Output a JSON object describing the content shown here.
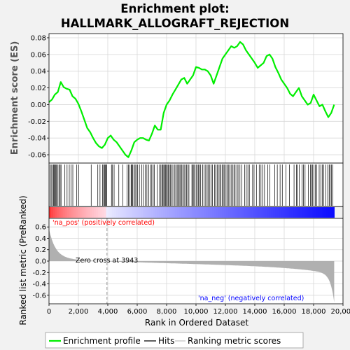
{
  "chart_data": [
    {
      "type": "line",
      "title_line1": "Enrichment plot:",
      "title_line2": "HALLMARK_ALLOGRAFT_REJECTION",
      "ylabel": "Enrichment score (ES)",
      "ylim": [
        -0.07,
        0.085
      ],
      "yticks": [
        "0.08",
        "0.06",
        "0.04",
        "0.02",
        "0.00",
        "-0.02",
        "-0.04",
        "-0.06"
      ],
      "ytick_values": [
        0.08,
        0.06,
        0.04,
        0.02,
        0.0,
        -0.02,
        -0.04,
        -0.06
      ],
      "xlim": [
        0,
        20000
      ],
      "grid": true,
      "line_color": "#00ee00",
      "series": [
        {
          "name": "Enrichment profile",
          "x": [
            0,
            200,
            400,
            600,
            800,
            1000,
            1200,
            1400,
            1600,
            1800,
            2000,
            2200,
            2400,
            2600,
            2800,
            3000,
            3200,
            3400,
            3600,
            3800,
            4000,
            4200,
            4400,
            4600,
            4800,
            5000,
            5200,
            5400,
            5600,
            5800,
            6000,
            6200,
            6400,
            6600,
            6800,
            7000,
            7200,
            7400,
            7600,
            7800,
            8000,
            8200,
            8400,
            8600,
            8800,
            9000,
            9200,
            9400,
            9600,
            9800,
            10000,
            10200,
            10400,
            10600,
            10800,
            11000,
            11200,
            11400,
            11600,
            11800,
            12000,
            12200,
            12400,
            12600,
            12800,
            13000,
            13200,
            13400,
            13600,
            13800,
            14000,
            14200,
            14400,
            14600,
            14800,
            15000,
            15200,
            15400,
            15600,
            15800,
            16000,
            16200,
            16400,
            16600,
            16800,
            17000,
            17200,
            17400,
            17600,
            17800,
            18000,
            18200,
            18400,
            18600,
            18800,
            19000,
            19200,
            19400
          ],
          "values": [
            0.003,
            0.006,
            0.012,
            0.015,
            0.027,
            0.021,
            0.019,
            0.018,
            0.01,
            0.007,
            0.001,
            -0.008,
            -0.018,
            -0.028,
            -0.033,
            -0.04,
            -0.046,
            -0.05,
            -0.052,
            -0.048,
            -0.04,
            -0.037,
            -0.042,
            -0.045,
            -0.05,
            -0.055,
            -0.06,
            -0.063,
            -0.055,
            -0.045,
            -0.042,
            -0.04,
            -0.04,
            -0.042,
            -0.043,
            -0.035,
            -0.025,
            -0.03,
            -0.03,
            -0.01,
            0.0,
            0.005,
            0.012,
            0.018,
            0.024,
            0.03,
            0.032,
            0.025,
            0.03,
            0.035,
            0.045,
            0.044,
            0.042,
            0.042,
            0.04,
            0.035,
            0.025,
            0.035,
            0.045,
            0.055,
            0.06,
            0.065,
            0.07,
            0.068,
            0.07,
            0.075,
            0.072,
            0.065,
            0.06,
            0.055,
            0.05,
            0.044,
            0.047,
            0.05,
            0.058,
            0.06,
            0.055,
            0.045,
            0.038,
            0.03,
            0.025,
            0.02,
            0.013,
            0.01,
            0.015,
            0.02,
            0.01,
            0.005,
            0.0,
            0.002,
            0.012,
            0.005,
            -0.002,
            0.0,
            -0.008,
            -0.015,
            -0.01,
            0.0
          ]
        }
      ]
    },
    {
      "type": "bar",
      "ylabel": "Ranked list metric (PreRanked)",
      "xlabel": "Rank in Ordered Dataset",
      "ylim": [
        -0.75,
        0.75
      ],
      "yticks": [
        "0.6",
        "0.4",
        "0.2",
        "0.0",
        "-0.2",
        "-0.4",
        "-0.6"
      ],
      "ytick_values": [
        0.6,
        0.4,
        0.2,
        0.0,
        -0.2,
        -0.4,
        -0.6
      ],
      "xticks": [
        "0",
        "2,000",
        "4,000",
        "6,000",
        "8,000",
        "10,000",
        "12,000",
        "14,000",
        "16,000",
        "18,000",
        "20,000"
      ],
      "xtick_values": [
        0,
        2000,
        4000,
        6000,
        8000,
        10000,
        12000,
        14000,
        16000,
        18000,
        20000
      ],
      "zero_cross": 3943,
      "zero_cross_label": "Zero cross at 3943",
      "pos_label": "'na_pos' (positively correlated)",
      "neg_label": "'na_neg' (negatively correlated)",
      "pos_color": "#ff0000",
      "neg_color": "#0000ff",
      "fill_color": "#b0b0b0",
      "n_genes": 19400
    }
  ],
  "hits_x": [
    70,
    150,
    260,
    310,
    360,
    420,
    470,
    520,
    610,
    700,
    760,
    820,
    1080,
    1230,
    1380,
    1500,
    1620,
    1890,
    2020,
    2870,
    3320,
    3470,
    3640,
    3720,
    3770,
    3820,
    3870,
    3920,
    4250,
    4320,
    4430,
    4750,
    5020,
    5310,
    5410,
    5510,
    5600,
    5650,
    5700,
    5780,
    5860,
    5940,
    6020,
    6150,
    6300,
    6420,
    6540,
    6660,
    6790,
    6910,
    6990,
    7090,
    7170,
    7370,
    7520,
    7610,
    7690,
    7750,
    7810,
    7870,
    7920,
    7990,
    8050,
    8120,
    8190,
    8270,
    8360,
    8430,
    8560,
    8630,
    8720,
    8800,
    8860,
    8930,
    9020,
    9100,
    9190,
    9250,
    9350,
    9440,
    9520,
    9720,
    9790,
    9850,
    9910,
    10010,
    10090,
    10160,
    10250,
    10320,
    10450,
    10540,
    10660,
    10760,
    10840,
    10940,
    11040,
    11120,
    11270,
    11340,
    11440,
    11520,
    11620,
    11700,
    11780,
    11860,
    11940,
    12040,
    12110,
    12200,
    12290,
    12390,
    12490,
    12580,
    12660,
    12780,
    12860,
    12990,
    13110,
    13310,
    13420,
    13530,
    13630,
    13850,
    13950,
    14110,
    14300,
    14420,
    14540,
    14660,
    14880,
    15020,
    15350,
    15530,
    15720,
    15870,
    16120,
    16350,
    16670,
    16830,
    16890,
    17020,
    17220,
    17310,
    17420,
    17640,
    17780,
    17850,
    17920,
    18020,
    18120,
    18220,
    18380,
    18500,
    18600,
    18680,
    18820,
    18960,
    19060,
    19130,
    19220,
    19310
  ],
  "legend": {
    "items": [
      {
        "label": "Enrichment profile",
        "color": "#00ee00"
      },
      {
        "label": "Hits",
        "color": "#000000"
      },
      {
        "label": "Ranking metric scores",
        "color": "#c0c0c0"
      }
    ]
  }
}
